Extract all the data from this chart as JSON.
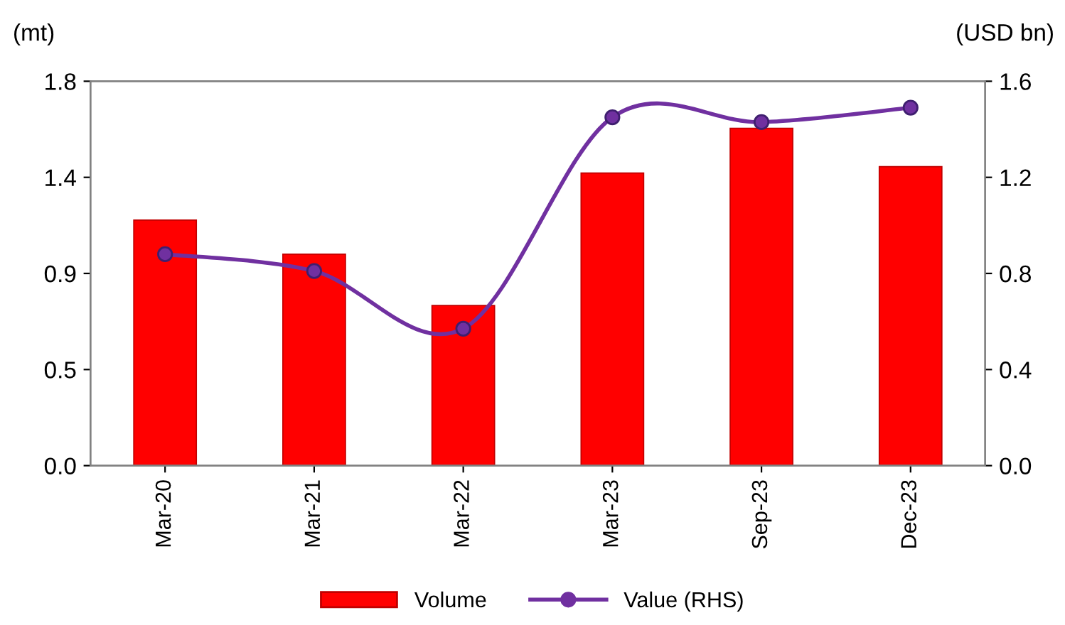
{
  "chart_data": {
    "type": "bar",
    "categories": [
      "Mar-20",
      "Mar-21",
      "Mar-22",
      "Mar-23",
      "Sep-23",
      "Dec-23"
    ],
    "ylabel": "(mt)",
    "y2label": "(USD bn)",
    "series": [
      {
        "name": "Volume",
        "color": "#ff0000",
        "values": [
          1.15,
          0.99,
          0.75,
          1.37,
          1.58,
          1.4
        ]
      },
      {
        "name": "Value (RHS)",
        "type": "line",
        "axis": "y2",
        "color": "#7030a0",
        "marker": "circle",
        "values": [
          0.88,
          0.81,
          0.57,
          1.45,
          1.43,
          1.49
        ]
      }
    ],
    "ylim": [
      0,
      1.8
    ],
    "yticks": [
      {
        "value": 0,
        "label": "0.0"
      },
      {
        "value": 0.45,
        "label": "0.5"
      },
      0.9,
      {
        "value": 1.35,
        "label": "1.4"
      },
      1.8
    ],
    "y2lim": [
      0,
      1.6
    ],
    "y2ticks": [
      {
        "value": 0,
        "label": "0.0"
      },
      0.4,
      0.8,
      1.2,
      1.6
    ],
    "grid": false,
    "legend": "bottom"
  }
}
